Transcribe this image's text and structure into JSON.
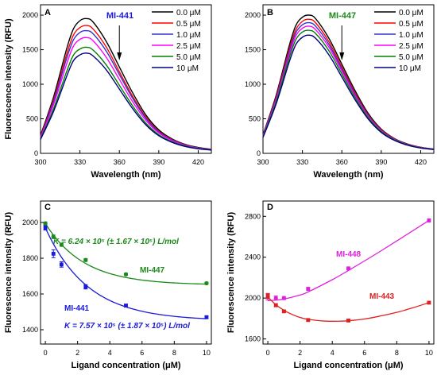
{
  "chart_data": [
    {
      "panel": "A",
      "type": "line",
      "annotation": "MI-441",
      "annotation_color": "#1a1adb",
      "xlabel": "Wavelength (nm)",
      "ylabel": "Fluorescence intensity (RFU)",
      "xlim": [
        300,
        430
      ],
      "ylim": [
        0,
        2150
      ],
      "xticks": [
        300,
        330,
        360,
        390,
        420
      ],
      "yticks": [
        0,
        500,
        1000,
        1500,
        2000
      ],
      "grid": false,
      "legend_position": "top-right",
      "x": [
        300,
        310,
        320,
        325,
        330,
        335,
        340,
        350,
        360,
        370,
        380,
        390,
        400,
        410,
        420,
        430
      ],
      "series": [
        {
          "name": "0.0 μM",
          "color": "#000000",
          "values": [
            260,
            820,
            1520,
            1800,
            1920,
            1950,
            1900,
            1620,
            1250,
            880,
            560,
            340,
            210,
            130,
            85,
            60
          ]
        },
        {
          "name": "0.5 μM",
          "color": "#ff0000",
          "values": [
            245,
            780,
            1440,
            1710,
            1820,
            1850,
            1800,
            1540,
            1180,
            830,
            530,
            320,
            200,
            125,
            80,
            58
          ]
        },
        {
          "name": "1.0 μM",
          "color": "#3333cc",
          "values": [
            235,
            750,
            1380,
            1640,
            1750,
            1775,
            1730,
            1480,
            1140,
            800,
            510,
            310,
            195,
            120,
            78,
            56
          ]
        },
        {
          "name": "2.5 μM",
          "color": "#ff00ff",
          "values": [
            225,
            710,
            1300,
            1550,
            1650,
            1675,
            1630,
            1390,
            1070,
            750,
            480,
            295,
            185,
            115,
            75,
            54
          ]
        },
        {
          "name": "5.0 μM",
          "color": "#008000",
          "values": [
            210,
            650,
            1190,
            1420,
            1510,
            1535,
            1495,
            1280,
            985,
            690,
            440,
            270,
            170,
            107,
            70,
            51
          ]
        },
        {
          "name": "10 μM",
          "color": "#000080",
          "values": [
            200,
            610,
            1120,
            1340,
            1425,
            1450,
            1410,
            1210,
            930,
            650,
            415,
            255,
            160,
            100,
            66,
            48
          ]
        }
      ]
    },
    {
      "panel": "B",
      "type": "line",
      "annotation": "MI-447",
      "annotation_color": "#1a8a1a",
      "xlabel": "Wavelength (nm)",
      "ylabel": "",
      "xlim": [
        300,
        430
      ],
      "ylim": [
        0,
        2150
      ],
      "xticks": [
        300,
        330,
        360,
        390,
        420
      ],
      "yticks": [
        0,
        500,
        1000,
        1500,
        2000
      ],
      "grid": false,
      "legend_position": "top-right",
      "x": [
        300,
        310,
        320,
        325,
        330,
        335,
        340,
        350,
        360,
        370,
        380,
        390,
        400,
        410,
        420,
        430
      ],
      "series": [
        {
          "name": "0.0 μM",
          "color": "#000000",
          "values": [
            270,
            840,
            1560,
            1850,
            1970,
            2000,
            1950,
            1670,
            1290,
            910,
            580,
            350,
            215,
            135,
            88,
            62
          ]
        },
        {
          "name": "0.5 μM",
          "color": "#ff0000",
          "values": [
            262,
            815,
            1510,
            1790,
            1910,
            1940,
            1890,
            1620,
            1250,
            880,
            560,
            340,
            210,
            130,
            85,
            60
          ]
        },
        {
          "name": "1.0 μM",
          "color": "#3333cc",
          "values": [
            255,
            795,
            1470,
            1745,
            1860,
            1890,
            1840,
            1580,
            1220,
            860,
            548,
            332,
            205,
            128,
            83,
            59
          ]
        },
        {
          "name": "2.5 μM",
          "color": "#ff00ff",
          "values": [
            248,
            770,
            1430,
            1700,
            1810,
            1840,
            1790,
            1540,
            1190,
            838,
            535,
            325,
            200,
            125,
            82,
            58
          ]
        },
        {
          "name": "5.0 μM",
          "color": "#008000",
          "values": [
            240,
            745,
            1385,
            1645,
            1755,
            1780,
            1735,
            1490,
            1150,
            810,
            518,
            315,
            195,
            122,
            80,
            57
          ]
        },
        {
          "name": "10 μM",
          "color": "#000080",
          "values": [
            230,
            715,
            1325,
            1575,
            1680,
            1710,
            1665,
            1430,
            1105,
            778,
            498,
            303,
            188,
            118,
            77,
            55
          ]
        }
      ]
    },
    {
      "panel": "C",
      "type": "scatter",
      "xlabel": "Ligand concentration (μM)",
      "ylabel": "Fluorescence intensity (RFU)",
      "xlim": [
        -0.3,
        10.3
      ],
      "ylim": [
        1320,
        2120
      ],
      "xticks": [
        0,
        2,
        4,
        6,
        8,
        10
      ],
      "yticks": [
        1400,
        1600,
        1800,
        2000
      ],
      "grid": false,
      "series": [
        {
          "name": "MI-447",
          "color": "#1a8a1a",
          "x": [
            0,
            0.5,
            1,
            2.5,
            5,
            10
          ],
          "values": [
            1995,
            1920,
            1875,
            1790,
            1710,
            1660
          ],
          "errors": [
            8,
            10,
            8,
            8,
            6,
            6
          ],
          "fit": {
            "y0": 1650,
            "amplitude": 345,
            "rate": 0.42
          }
        },
        {
          "name": "MI-441",
          "color": "#1a1adb",
          "x": [
            0,
            0.5,
            1,
            2.5,
            5,
            10
          ],
          "values": [
            1970,
            1825,
            1765,
            1640,
            1535,
            1470
          ],
          "errors": [
            12,
            22,
            15,
            12,
            8,
            6
          ],
          "fit": {
            "y0": 1450,
            "amplitude": 520,
            "rate": 0.38
          }
        }
      ],
      "annotations": [
        {
          "text": "K = 6.24 × 10⁵ (± 1.67 × 10⁵) L/mol",
          "color": "#1a8a1a"
        },
        {
          "text": "K = 7.57 × 10⁵ (± 1.87 × 10⁵) L/mol",
          "color": "#1a1adb"
        }
      ]
    },
    {
      "panel": "D",
      "type": "scatter",
      "xlabel": "Ligand concentration (μM)",
      "ylabel": "Fluorescence intensity (RFU)",
      "xlim": [
        -0.3,
        10.3
      ],
      "ylim": [
        1550,
        2950
      ],
      "xticks": [
        0,
        2,
        4,
        6,
        8,
        10
      ],
      "yticks": [
        1600,
        2000,
        2400,
        2800
      ],
      "grid": false,
      "series": [
        {
          "name": "MI-448",
          "color": "#e020e0",
          "x": [
            0,
            0.5,
            1,
            2.5,
            5,
            10
          ],
          "values": [
            2010,
            2000,
            2000,
            2090,
            2290,
            2760
          ],
          "errors": [
            30,
            20,
            15,
            15,
            15,
            15
          ],
          "fit_points": [
            [
              0,
              1975
            ],
            [
              0.5,
              1980
            ],
            [
              1,
              1990
            ],
            [
              2,
              2030
            ],
            [
              2.5,
              2060
            ],
            [
              4,
              2180
            ],
            [
              5,
              2270
            ],
            [
              7,
              2460
            ],
            [
              10,
              2760
            ]
          ]
        },
        {
          "name": "MI-443",
          "color": "#e02020",
          "x": [
            0,
            0.5,
            1,
            2.5,
            5,
            10
          ],
          "values": [
            2020,
            1930,
            1870,
            1785,
            1780,
            1955
          ],
          "errors": [
            25,
            15,
            10,
            10,
            10,
            10
          ],
          "fit_points": [
            [
              0,
              2010
            ],
            [
              0.5,
              1935
            ],
            [
              1,
              1880
            ],
            [
              1.5,
              1840
            ],
            [
              2,
              1810
            ],
            [
              2.5,
              1792
            ],
            [
              3.5,
              1775
            ],
            [
              4.5,
              1774
            ],
            [
              5,
              1778
            ],
            [
              6,
              1795
            ],
            [
              7,
              1825
            ],
            [
              8,
              1860
            ],
            [
              9,
              1905
            ],
            [
              10,
              1955
            ]
          ]
        }
      ]
    }
  ],
  "texts": {
    "panelA_letter": "A",
    "panelB_letter": "B",
    "panelC_letter": "C",
    "panelD_letter": "D",
    "a_annot": "MI-441",
    "b_annot": "MI-447",
    "c_label_447": "MI-447",
    "c_label_441": "MI-441",
    "c_k_447": "K = 6.24 × 10⁵ (± 1.67 × 10⁵) L/mol",
    "c_k_441": "K = 7.57 × 10⁵ (± 1.87 × 10⁵) L/mol",
    "d_label_448": "MI-448",
    "d_label_443": "MI-443"
  }
}
